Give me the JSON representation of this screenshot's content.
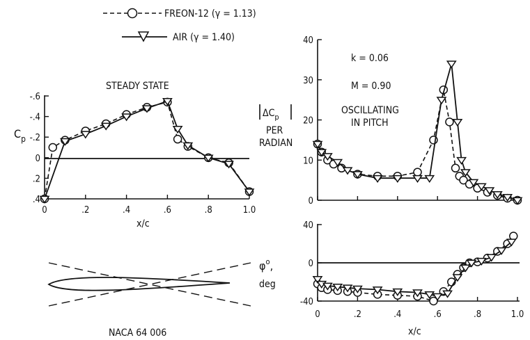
{
  "legend": {
    "freon_label": "FREON-12 (γ = 1.13)",
    "air_label": "AIR (γ = 1.40)"
  },
  "steady": {
    "title": "STEADY STATE",
    "ylabel": "C",
    "ylabel_sub": "p",
    "xlabel": "x/c",
    "xticks": [
      "0",
      ".2",
      ".4",
      ".6",
      ".8",
      "1.0"
    ],
    "yticks": [
      "-.6",
      "-.4",
      "-.2",
      "0",
      ".2",
      ".4"
    ]
  },
  "airfoil": {
    "label": "NACA 64 006"
  },
  "oscillating": {
    "k_label": "k = 0.06",
    "m_label": "M = 0.90",
    "title_line1": "OSCILLATING",
    "title_line2": "IN PITCH",
    "ylabel_mag": "ΔC",
    "ylabel_mag_sub": "p",
    "ylabel_per": "PER",
    "ylabel_radian": "RADIAN",
    "phase_label": "φ",
    "phase_sup": "o",
    "phase_comma": ",",
    "phase_unit": "deg",
    "xlabel": "x/c",
    "xticks": [
      "0",
      ".2",
      ".4",
      ".6",
      ".8",
      "1.0"
    ],
    "mag_yticks": [
      "0",
      "10",
      "20",
      "30",
      "40"
    ],
    "phase_yticks": [
      "-40",
      "0",
      "40"
    ]
  },
  "colors": {
    "ink": "#111111",
    "background": "#ffffff"
  },
  "chart_data": [
    {
      "type": "line",
      "title": "STEADY STATE",
      "xlabel": "x/c",
      "ylabel": "Cp",
      "xlim": [
        0,
        1.0
      ],
      "ylim": [
        -0.6,
        0.4
      ],
      "y_inverted": true,
      "series": [
        {
          "name": "FREON-12 (γ = 1.13)",
          "x": [
            0,
            0.04,
            0.1,
            0.2,
            0.3,
            0.4,
            0.5,
            0.6,
            0.65,
            0.7,
            0.8,
            0.9,
            1.0
          ],
          "y": [
            0.4,
            -0.1,
            -0.17,
            -0.26,
            -0.33,
            -0.42,
            -0.49,
            -0.54,
            -0.18,
            -0.11,
            0.0,
            0.05,
            0.33
          ]
        },
        {
          "name": "AIR (γ = 1.40)",
          "x": [
            0,
            0.1,
            0.2,
            0.3,
            0.4,
            0.5,
            0.6,
            0.65,
            0.7,
            0.8,
            0.9,
            1.0
          ],
          "y": [
            0.4,
            -0.16,
            -0.23,
            -0.31,
            -0.4,
            -0.48,
            -0.55,
            -0.28,
            -0.12,
            0.0,
            0.06,
            0.33
          ]
        }
      ]
    },
    {
      "type": "line",
      "title": "OSCILLATING IN PITCH",
      "xlabel": "x/c",
      "ylabel": "|ΔCp| PER RADIAN",
      "xlim": [
        0,
        1.0
      ],
      "ylim": [
        0,
        40
      ],
      "annotations": [
        "k = 0.06",
        "M = 0.90"
      ],
      "series": [
        {
          "name": "FREON-12 (γ = 1.13)",
          "x": [
            0,
            0.02,
            0.05,
            0.08,
            0.12,
            0.2,
            0.3,
            0.4,
            0.5,
            0.58,
            0.63,
            0.66,
            0.69,
            0.71,
            0.73,
            0.76,
            0.8,
            0.85,
            0.9,
            0.95,
            1.0
          ],
          "y": [
            14,
            12,
            10,
            9,
            8,
            6.5,
            6,
            6,
            7,
            15,
            27.5,
            19.5,
            8,
            6,
            5,
            4,
            3,
            2,
            1.2,
            0.5,
            0
          ]
        },
        {
          "name": "AIR (γ = 1.40)",
          "x": [
            0,
            0.02,
            0.05,
            0.1,
            0.15,
            0.2,
            0.3,
            0.4,
            0.5,
            0.56,
            0.62,
            0.67,
            0.7,
            0.72,
            0.74,
            0.78,
            0.82,
            0.86,
            0.9,
            0.95,
            1.0
          ],
          "y": [
            14,
            12,
            11,
            9.5,
            7.5,
            6.5,
            5.5,
            5.5,
            5.5,
            5.5,
            25,
            34,
            19.5,
            10,
            7,
            4.5,
            3.5,
            2.5,
            1.5,
            0.8,
            0
          ]
        }
      ]
    },
    {
      "type": "line",
      "title": "",
      "xlabel": "x/c",
      "ylabel": "φ°, deg",
      "xlim": [
        0,
        1.0
      ],
      "ylim": [
        -40,
        40
      ],
      "series": [
        {
          "name": "FREON-12 (γ = 1.13)",
          "x": [
            0,
            0.02,
            0.05,
            0.1,
            0.15,
            0.2,
            0.3,
            0.4,
            0.5,
            0.58,
            0.63,
            0.67,
            0.7,
            0.73,
            0.76,
            0.8,
            0.85,
            0.9,
            0.95,
            0.98
          ],
          "y": [
            -22,
            -26,
            -28,
            -29,
            -30,
            -31,
            -33,
            -34,
            -35,
            -40,
            -30,
            -20,
            -12,
            -5,
            0,
            1,
            5,
            12,
            20,
            28
          ]
        },
        {
          "name": "AIR (γ = 1.40)",
          "x": [
            0,
            0.02,
            0.05,
            0.1,
            0.15,
            0.2,
            0.3,
            0.4,
            0.5,
            0.56,
            0.6,
            0.65,
            0.7,
            0.74,
            0.77,
            0.82,
            0.87,
            0.92,
            0.97
          ],
          "y": [
            -17,
            -22,
            -24,
            -25,
            -26,
            -27,
            -28,
            -30,
            -31,
            -33,
            -35,
            -32,
            -15,
            -5,
            0,
            2,
            6,
            13,
            22
          ]
        }
      ]
    }
  ]
}
